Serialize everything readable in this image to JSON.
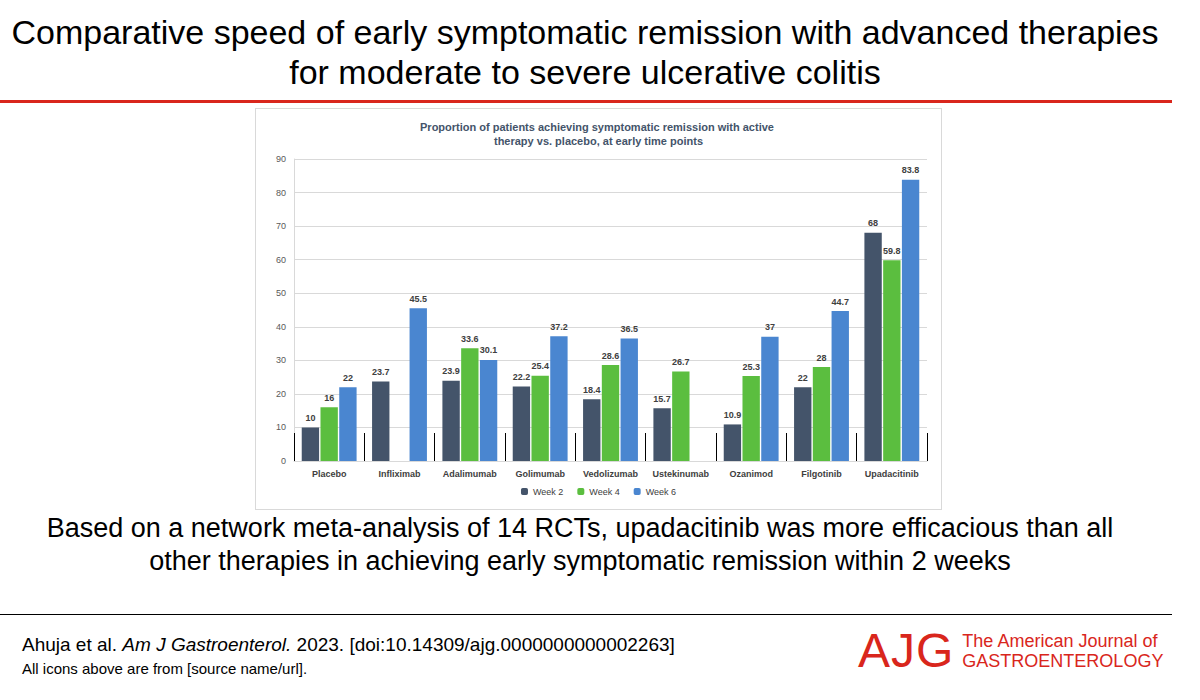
{
  "header": {
    "title": "Comparative speed of early symptomatic remission with advanced therapies for moderate to severe ulcerative colitis"
  },
  "chart_data": {
    "type": "bar",
    "title": "Proportion of patients achieving symptomatic remission with active therapy vs. placebo, at early time points",
    "categories": [
      "Placebo",
      "Infliximab",
      "Adalimumab",
      "Golimumab",
      "Vedolizumab",
      "Ustekinumab",
      "Ozanimod",
      "Filgotinib",
      "Upadacitinib"
    ],
    "series": [
      {
        "name": "Week 2",
        "color": "#44546A",
        "values": [
          10,
          23.7,
          23.9,
          22.2,
          18.4,
          15.7,
          10.9,
          22,
          68
        ]
      },
      {
        "name": "Week 4",
        "color": "#5BBE3F",
        "values": [
          16,
          null,
          33.6,
          25.4,
          28.6,
          26.7,
          25.3,
          28,
          59.8
        ]
      },
      {
        "name": "Week 6",
        "color": "#4A86D0",
        "values": [
          22,
          45.5,
          30.1,
          37.2,
          36.5,
          null,
          37,
          44.7,
          83.8
        ]
      }
    ],
    "ylim": [
      0,
      90
    ],
    "yticks": [
      0,
      10,
      20,
      30,
      40,
      50,
      60,
      70,
      80,
      90
    ],
    "grid": true,
    "legend": "bottom",
    "data_labels": true
  },
  "caption": "Based on a network meta-analysis of 14 RCTs, upadacitinib was more efficacious than all other therapies in achieving early symptomatic remission within 2 weeks",
  "footer": {
    "citation": {
      "authors": "Ahuja et al.",
      "journal": "Am J Gastroenterol.",
      "details": "2023. [doi:10.14309/ajg.0000000000002263]"
    },
    "note": "All icons above are from [source name/url]."
  },
  "logo": {
    "mark": "AJG",
    "line1": "The American Journal of",
    "line2": "GASTROENTEROLOGY"
  }
}
